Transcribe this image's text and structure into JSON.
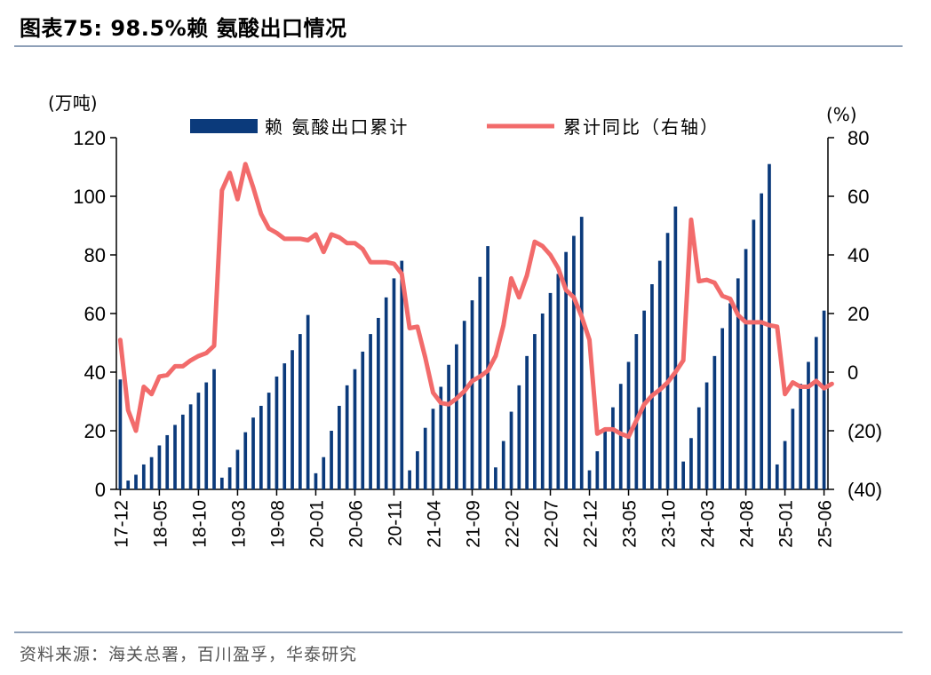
{
  "header": {
    "title": "图表75:   98.5%赖 氨酸出口情况"
  },
  "footer": {
    "source": "资料来源：海关总署，百川盈孚，华泰研究"
  },
  "colors": {
    "bar": "#0B3A7B",
    "line": "#F26B6B",
    "rule": "#8EA0B8"
  },
  "chart_data": {
    "type": "bar+line",
    "left_unit": "(万吨)",
    "right_unit": "(%)",
    "left_ylim": [
      0,
      120
    ],
    "left_ticks": [
      "0",
      "20",
      "40",
      "60",
      "80",
      "100",
      "120"
    ],
    "right_ylim": [
      -40,
      80
    ],
    "right_ticks": [
      "(40)",
      "(20)",
      "0",
      "20",
      "40",
      "60",
      "80"
    ],
    "x_tick_labels": [
      "17-12",
      "18-05",
      "18-10",
      "19-03",
      "19-08",
      "20-01",
      "20-06",
      "20-11",
      "21-04",
      "21-09",
      "22-02",
      "22-07",
      "22-12",
      "23-05",
      "23-10",
      "24-03",
      "24-08",
      "25-01",
      "25-06"
    ],
    "legend": {
      "bar_label": "赖 氨酸出口累计",
      "line_label": "累计同比（右轴）"
    },
    "series": [
      {
        "name": "赖 氨酸出口累计",
        "type": "bar",
        "axis": "left",
        "values": [
          37.5,
          3,
          5,
          8.5,
          11,
          15,
          18.5,
          22,
          25.5,
          29,
          33,
          36.5,
          41,
          4,
          7.5,
          13.5,
          19.5,
          24.5,
          28.5,
          33,
          38.5,
          43,
          47.5,
          53,
          59.5,
          5.5,
          11,
          20,
          28.5,
          35.5,
          41,
          47,
          53,
          58.5,
          65.5,
          72,
          78,
          6.5,
          13,
          21,
          27.5,
          35,
          42.5,
          49.5,
          57.5,
          64.5,
          72.5,
          83,
          7.5,
          16.5,
          26.5,
          35.5,
          45.5,
          53,
          60,
          67,
          73.5,
          81,
          86.5,
          93,
          6.5,
          13,
          21,
          28,
          36,
          43.5,
          53,
          61,
          70,
          78,
          87.5,
          96.5,
          9.5,
          17.5,
          28,
          36.5,
          45.5,
          55,
          63.5,
          72,
          82,
          92,
          101,
          111,
          8.5,
          16.5,
          27.5,
          36,
          43.5,
          52,
          61
        ]
      },
      {
        "name": "累计同比（右轴）",
        "type": "line",
        "axis": "right",
        "values": [
          11,
          -13,
          -20,
          -5,
          -7.5,
          -1.5,
          -1,
          2,
          2,
          4,
          5.5,
          6.5,
          9,
          62,
          68,
          59,
          71,
          63,
          54,
          49,
          47.5,
          45.5,
          45.5,
          45.5,
          45,
          47,
          41,
          47,
          46,
          44,
          44,
          42,
          37.5,
          37.5,
          37.5,
          37,
          33.5,
          15,
          15.5,
          5,
          -7,
          -10.5,
          -11,
          -9,
          -6.5,
          -3,
          -1.5,
          0.5,
          5.5,
          16,
          32,
          25.5,
          33,
          44.5,
          43,
          40,
          35.5,
          28,
          25.5,
          19,
          11,
          -21,
          -19.5,
          -19.5,
          -21,
          -22,
          -16.5,
          -11,
          -8,
          -6,
          -3.5,
          0,
          4,
          52,
          31,
          31.5,
          30.5,
          26,
          25,
          19.5,
          17,
          17,
          17,
          16,
          15.5,
          -7.5,
          -3.5,
          -5,
          -5,
          -3,
          -5.5,
          -4
        ]
      }
    ]
  }
}
